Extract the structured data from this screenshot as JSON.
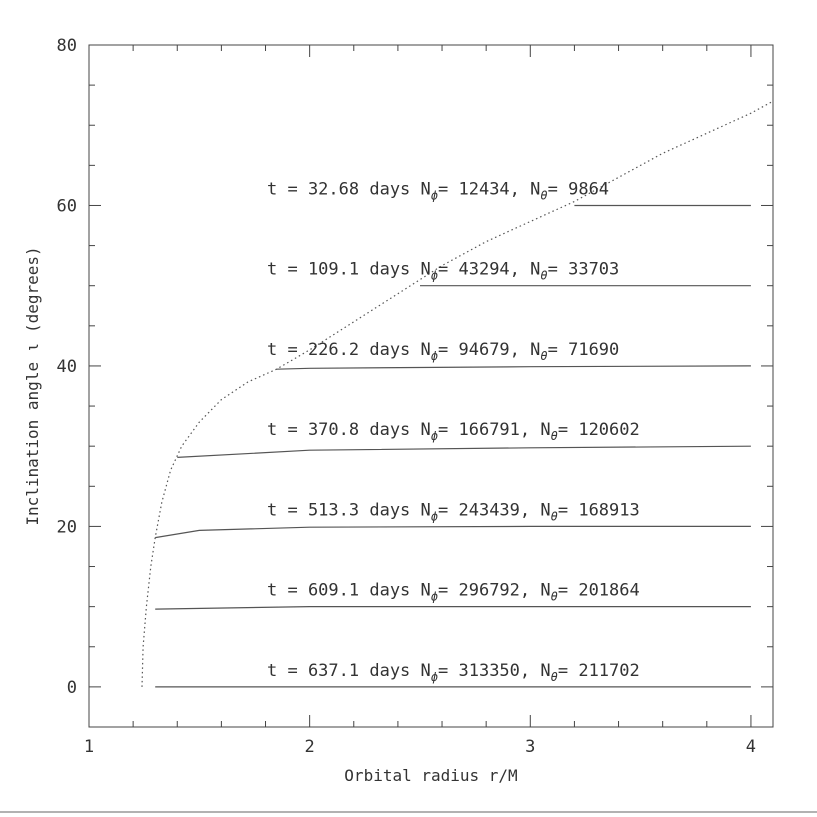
{
  "chart_data": {
    "type": "line",
    "title": "",
    "xlabel": "Orbital radius r/M",
    "ylabel": "Inclination angle ι  (degrees)",
    "xlim": [
      1,
      4.1
    ],
    "ylim": [
      -5,
      80
    ],
    "xticks": [
      1,
      2,
      3,
      4
    ],
    "yticks": [
      0,
      20,
      40,
      60,
      80
    ],
    "x_minor_step": 0.2,
    "y_minor_step": 5,
    "grid": false,
    "series": [
      {
        "label": {
          "t": "t = 32.68 days",
          "n_phi": "12434",
          "n_theta": "9864"
        },
        "x": [
          4.0,
          3.2
        ],
        "y": [
          60.0,
          60.0
        ]
      },
      {
        "label": {
          "t": "t = 109.1 days",
          "n_phi": "43294",
          "n_theta": "33703"
        },
        "x": [
          4.0,
          2.5
        ],
        "y": [
          50.0,
          50.0
        ]
      },
      {
        "label": {
          "t": "t = 226.2 days",
          "n_phi": "94679",
          "n_theta": "71690"
        },
        "x": [
          4.0,
          3.0,
          2.0,
          1.85
        ],
        "y": [
          40.0,
          39.9,
          39.7,
          39.6
        ]
      },
      {
        "label": {
          "t": "t = 370.8 days",
          "n_phi": "166791",
          "n_theta": "120602"
        },
        "x": [
          4.0,
          3.0,
          2.0,
          1.4
        ],
        "y": [
          30.0,
          29.8,
          29.5,
          28.6
        ]
      },
      {
        "label": {
          "t": "t = 513.3 days",
          "n_phi": "243439",
          "n_theta": "168913"
        },
        "x": [
          4.0,
          3.0,
          2.0,
          1.5,
          1.3
        ],
        "y": [
          20.0,
          20.0,
          19.9,
          19.5,
          18.6
        ]
      },
      {
        "label": {
          "t": "t = 609.1 days",
          "n_phi": "296792",
          "n_theta": "201864"
        },
        "x": [
          4.0,
          3.0,
          2.0,
          1.3
        ],
        "y": [
          10.0,
          10.0,
          10.0,
          9.7
        ]
      },
      {
        "label": {
          "t": "t = 637.1 days",
          "n_phi": "313350",
          "n_theta": "211702"
        },
        "x": [
          4.0,
          1.3
        ],
        "y": [
          0.0,
          0.0
        ]
      }
    ],
    "boundary_curve": {
      "style": "dotted",
      "x": [
        1.24,
        1.245,
        1.26,
        1.28,
        1.3,
        1.33,
        1.37,
        1.42,
        1.5,
        1.6,
        1.72,
        1.85,
        2.0,
        2.2,
        2.4,
        2.6,
        2.8,
        3.0,
        3.2,
        3.4,
        3.6,
        3.8,
        4.0,
        4.1
      ],
      "y": [
        0.0,
        5.0,
        10.0,
        15.0,
        18.6,
        23.0,
        27.0,
        30.0,
        33.0,
        35.8,
        38.0,
        39.6,
        42.0,
        45.5,
        49.0,
        52.5,
        55.5,
        58.0,
        60.5,
        63.5,
        66.5,
        69.0,
        71.5,
        73.0
      ]
    },
    "annotations": {
      "phi_symbol": "ϕ",
      "theta_symbol": "θ",
      "n": "N",
      "eq": "= ",
      "sep": ", "
    }
  }
}
